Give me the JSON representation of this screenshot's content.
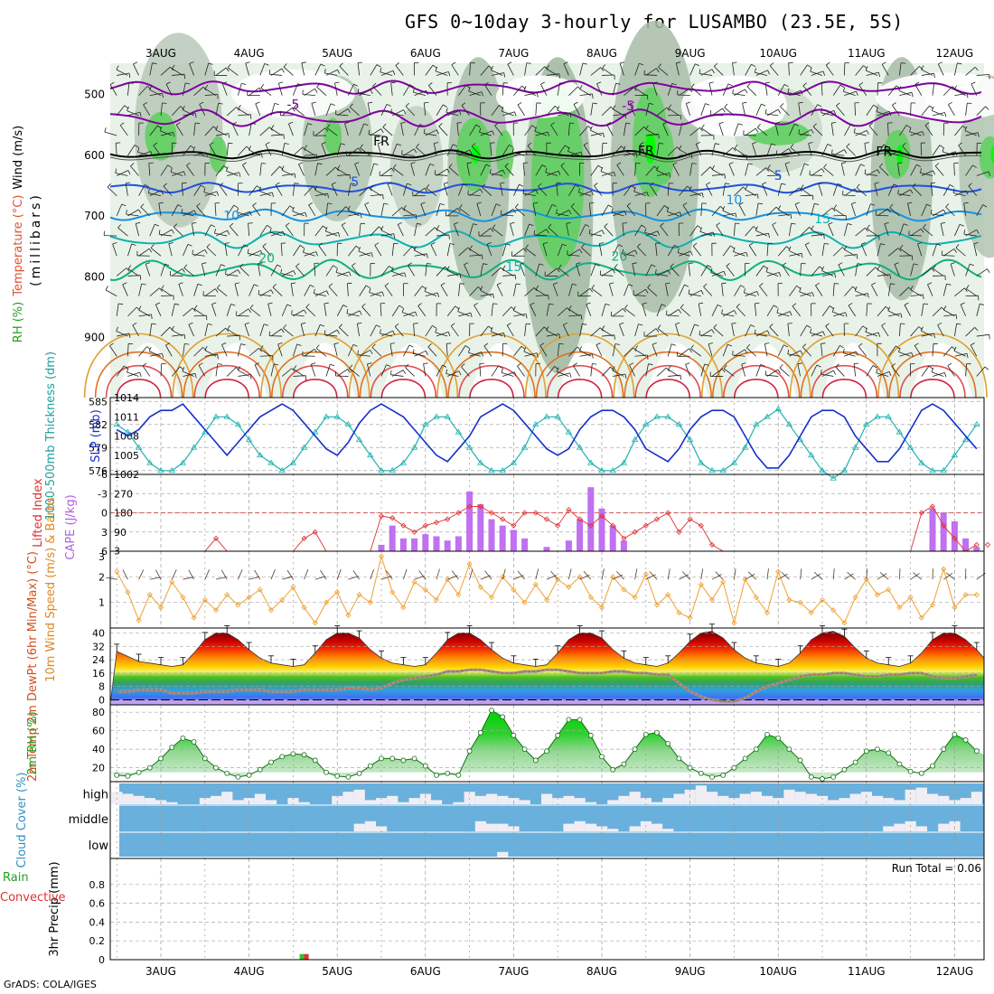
{
  "title": "GFS 0~10day 3-hourly for LUSAMBO (23.5E, 5S)",
  "credit": "GrADS: COLA/IGES",
  "dates": [
    "3AUG",
    "4AUG",
    "5AUG",
    "6AUG",
    "7AUG",
    "8AUG",
    "9AUG",
    "10AUG",
    "11AUG",
    "12AUG"
  ],
  "colors": {
    "rh_green": "#22c022",
    "temp_blue": "#2255dd",
    "thickness": "#20b0b0",
    "slp": "#1530cc",
    "cape": "#c070f0",
    "li": "#e03030",
    "wind": "#f0a030",
    "rh2m": "#22b022",
    "cloud": "#6ab0dc",
    "precip_rain": "#30c030",
    "precip_conv": "#e03030"
  },
  "chart_data": [
    {
      "type": "heatmap",
      "name": "upper_air",
      "ylabel_rh": "RH (%)",
      "ylabel_temp": "Temperature (°C)",
      "ylabel_wind": "Wind (m/s)",
      "ylabel_units": "(millibars)",
      "yticks": [
        500,
        600,
        700,
        800,
        900
      ],
      "ylim": [
        1000,
        450
      ],
      "contour_labels": [
        {
          "text": "-5",
          "x_day": 1.5,
          "p": 525,
          "color": "#8000a0"
        },
        {
          "text": "-5",
          "x_day": 5.3,
          "p": 527,
          "color": "#8000a0"
        },
        {
          "text": "FR",
          "x_day": 2.5,
          "p": 585,
          "color": "#000"
        },
        {
          "text": "FR",
          "x_day": 5.5,
          "p": 601,
          "color": "#000"
        },
        {
          "text": "FR",
          "x_day": 8.2,
          "p": 602,
          "color": "#000"
        },
        {
          "text": "5",
          "x_day": 2.2,
          "p": 652,
          "color": "#2050e0"
        },
        {
          "text": "5",
          "x_day": 7.0,
          "p": 642,
          "color": "#2050e0"
        },
        {
          "text": "10",
          "x_day": 0.8,
          "p": 708,
          "color": "#1890e0"
        },
        {
          "text": "10",
          "x_day": 6.5,
          "p": 682,
          "color": "#1890e0"
        },
        {
          "text": "15",
          "x_day": 4.0,
          "p": 792,
          "color": "#10b0b0"
        },
        {
          "text": "15",
          "x_day": 7.5,
          "p": 713,
          "color": "#10b0b0"
        },
        {
          "text": "20",
          "x_day": 1.2,
          "p": 778,
          "color": "#10b080"
        },
        {
          "text": "20",
          "x_day": 5.2,
          "p": 775,
          "color": "#10b080"
        }
      ]
    },
    {
      "type": "line",
      "name": "thickness_slp",
      "ylabel_left": "1000-500mb Thickness (dm)",
      "ylabel_right": "SLP (mb)",
      "yticks_left": [
        576,
        579,
        582,
        585
      ],
      "yticks_right": [
        1002,
        1005,
        1008,
        1011,
        1014
      ],
      "ylim_left": [
        575.5,
        585.5
      ],
      "ylim_right": [
        1002,
        1014
      ],
      "x_step_hours": 3,
      "series": [
        {
          "key": "thickness",
          "values": [
            582,
            581,
            579,
            577,
            576,
            576,
            577,
            579,
            581,
            583,
            583,
            582,
            580,
            578,
            577,
            576,
            577,
            579,
            581,
            583,
            583,
            582,
            580,
            578,
            576,
            576,
            577,
            579,
            582,
            583,
            583,
            581,
            579,
            577,
            576,
            576,
            577,
            579,
            582,
            583,
            583,
            581,
            579,
            577,
            576,
            576,
            577,
            580,
            582,
            583,
            583,
            582,
            580,
            577,
            576,
            576,
            577,
            579,
            582,
            583,
            584,
            582,
            580,
            578,
            576,
            575,
            576,
            579,
            582,
            583,
            583,
            581,
            579,
            577,
            576,
            576,
            578,
            580,
            582,
            583,
            583,
            582,
            580,
            578,
            577,
            576,
            577
          ]
        },
        {
          "key": "slp",
          "values": [
            1009,
            1008,
            1009,
            1011,
            1012,
            1012,
            1013,
            1011,
            1009,
            1007,
            1005,
            1007,
            1009,
            1011,
            1012,
            1013,
            1012,
            1010,
            1008,
            1006,
            1005,
            1007,
            1010,
            1012,
            1013,
            1012,
            1011,
            1009,
            1007,
            1005,
            1004,
            1006,
            1008,
            1011,
            1012,
            1013,
            1012,
            1010,
            1008,
            1006,
            1005,
            1006,
            1009,
            1011,
            1012,
            1012,
            1011,
            1009,
            1006,
            1005,
            1004,
            1006,
            1009,
            1011,
            1012,
            1012,
            1011,
            1008,
            1005,
            1003,
            1003,
            1005,
            1008,
            1011,
            1012,
            1012,
            1011,
            1008,
            1006,
            1004,
            1004,
            1006,
            1009,
            1012,
            1013,
            1012,
            1010,
            1008,
            1006,
            1005,
            1004,
            1006,
            1008,
            1010,
            1011,
            1011,
            1012
          ]
        }
      ]
    },
    {
      "type": "bar",
      "name": "cape_li",
      "ylabel_left": "Lifted Index",
      "ylabel_right": "CAPE (J/kg)",
      "yticks_left": [
        "-6",
        "-3",
        "0",
        "3",
        "6"
      ],
      "yticks_right": [
        3,
        90,
        180,
        270
      ],
      "ylim_right": [
        0,
        360
      ],
      "ylim_li": [
        6,
        -6
      ],
      "cape": [
        0,
        0,
        0,
        0,
        0,
        0,
        0,
        0,
        0,
        0,
        0,
        0,
        0,
        0,
        0,
        0,
        0,
        0,
        0,
        0,
        0,
        0,
        0,
        0,
        30,
        120,
        60,
        60,
        80,
        70,
        50,
        70,
        280,
        220,
        150,
        120,
        100,
        60,
        0,
        20,
        0,
        50,
        150,
        300,
        200,
        120,
        50,
        0,
        0,
        0,
        0,
        0,
        0,
        0,
        0,
        0,
        0,
        0,
        0,
        0,
        0,
        0,
        0,
        0,
        0,
        0,
        0,
        0,
        0,
        0,
        0,
        0,
        0,
        0,
        200,
        180,
        140,
        60,
        20,
        0,
        0,
        0,
        0,
        240,
        180,
        50,
        20,
        0,
        10
      ],
      "li": [
        7,
        7,
        7,
        7,
        7,
        7,
        7,
        7,
        7,
        4,
        6,
        7,
        7,
        7,
        7,
        7,
        7,
        4,
        3,
        6,
        7,
        7,
        7,
        7,
        0.5,
        0.8,
        2,
        3,
        2,
        1.5,
        1,
        0,
        -1,
        -1,
        0,
        1,
        2,
        0,
        0,
        1,
        2,
        -0.5,
        1,
        2,
        0.5,
        2,
        4,
        3,
        2,
        1,
        0,
        3,
        1,
        2,
        5,
        7,
        7,
        7,
        7,
        7,
        7,
        7,
        7,
        7,
        7,
        7,
        7,
        7,
        7,
        7,
        7,
        7,
        7,
        0,
        -1,
        2,
        4,
        6,
        5,
        5,
        6,
        2,
        0,
        -2,
        1,
        3,
        5,
        6,
        6,
        4,
        2,
        0
      ]
    },
    {
      "type": "line",
      "name": "wind10m",
      "ylabel": "10m Wind Speed (m/s) & Barbs",
      "yticks": [
        1,
        2
      ],
      "ylim": [
        0,
        3
      ],
      "values": [
        2.2,
        1.4,
        0.3,
        1.3,
        0.8,
        1.8,
        1.2,
        0.4,
        1.1,
        0.7,
        1.3,
        0.9,
        1.2,
        1.5,
        0.7,
        1.1,
        1.6,
        0.8,
        0.2,
        1.0,
        1.4,
        0.5,
        1.3,
        1.0,
        2.8,
        1.4,
        0.8,
        1.8,
        1.5,
        1.1,
        1.9,
        1.3,
        2.5,
        1.6,
        1.2,
        2.0,
        1.5,
        1.0,
        1.7,
        1.1,
        1.9,
        1.6,
        2.0,
        1.2,
        0.8,
        2.0,
        1.5,
        1.2,
        2.1,
        0.9,
        1.3,
        0.6,
        0.4,
        1.7,
        1.1,
        1.8,
        0.2,
        1.9,
        1.2,
        0.6,
        2.2,
        1.1,
        1.0,
        0.6,
        1.1,
        0.7,
        0.2,
        1.2,
        1.9,
        1.3,
        1.5,
        0.8,
        1.2,
        0.4,
        0.9,
        2.3,
        0.8,
        1.3,
        1.3,
        2.2,
        1.1,
        0.7,
        0.4,
        1.0,
        0.8,
        1.1,
        1.2
      ]
    },
    {
      "type": "area",
      "name": "temp2m",
      "ylabel": "2m Temp 2m DewPt (6hr Min/Max) (°C)",
      "yticks": [
        0,
        8,
        16,
        24,
        32,
        40
      ],
      "ylim": [
        -3,
        43
      ],
      "temp": [
        29,
        26,
        23,
        22,
        21,
        20,
        21,
        28,
        36,
        40,
        40,
        36,
        30,
        25,
        22,
        21,
        20,
        21,
        28,
        36,
        40,
        40,
        37,
        30,
        25,
        22,
        21,
        20,
        21,
        28,
        36,
        40,
        40,
        36,
        30,
        25,
        22,
        21,
        20,
        21,
        28,
        36,
        40,
        40,
        37,
        30,
        25,
        22,
        21,
        20,
        22,
        28,
        35,
        40,
        41,
        37,
        30,
        25,
        22,
        21,
        20,
        22,
        28,
        36,
        40,
        41,
        38,
        31,
        25,
        22,
        21,
        20,
        22,
        28,
        36,
        40,
        40,
        36,
        30,
        25,
        22,
        21,
        20,
        22,
        28,
        35,
        40,
        39,
        36
      ],
      "dewpt": [
        5,
        5,
        6,
        6,
        6,
        4,
        4,
        4,
        5,
        5,
        5,
        6,
        6,
        6,
        5,
        5,
        5,
        6,
        6,
        6,
        6,
        7,
        7,
        6,
        7,
        10,
        12,
        13,
        14,
        15,
        17,
        17,
        18,
        18,
        17,
        16,
        16,
        17,
        17,
        18,
        18,
        17,
        16,
        16,
        16,
        17,
        17,
        16,
        16,
        15,
        15,
        10,
        5,
        2,
        0,
        -1,
        -1,
        1,
        5,
        8,
        10,
        12,
        14,
        15,
        15,
        16,
        16,
        15,
        14,
        14,
        15,
        15,
        16,
        16,
        14,
        13,
        13,
        14,
        15,
        14,
        14,
        14,
        13,
        13,
        14,
        15,
        17
      ]
    },
    {
      "type": "area",
      "name": "rh2m",
      "ylabel": "2m RH (%)",
      "yticks": [
        20,
        40,
        60,
        80
      ],
      "ylim": [
        5,
        88
      ],
      "values": [
        12,
        11,
        15,
        20,
        30,
        42,
        52,
        48,
        30,
        20,
        14,
        10,
        12,
        18,
        26,
        32,
        35,
        34,
        28,
        15,
        11,
        10,
        14,
        22,
        30,
        30,
        28,
        30,
        22,
        12,
        14,
        12,
        38,
        58,
        82,
        75,
        55,
        40,
        28,
        38,
        55,
        72,
        72,
        55,
        32,
        18,
        24,
        40,
        56,
        58,
        46,
        30,
        20,
        14,
        10,
        12,
        20,
        30,
        40,
        56,
        52,
        40,
        28,
        10,
        8,
        10,
        18,
        26,
        38,
        40,
        36,
        24,
        16,
        14,
        22,
        40,
        56,
        50,
        38,
        34,
        42,
        55,
        52,
        38,
        20,
        14,
        20,
        42,
        65
      ]
    },
    {
      "type": "bar",
      "name": "cloud_cover",
      "ylabel": "Cloud Cover (%)",
      "levels": [
        "high",
        "middle",
        "low"
      ],
      "high": [
        60,
        50,
        40,
        30,
        20,
        10,
        0,
        0,
        30,
        40,
        60,
        20,
        30,
        50,
        20,
        0,
        30,
        10,
        0,
        0,
        40,
        60,
        70,
        20,
        30,
        40,
        10,
        30,
        50,
        20,
        0,
        10,
        60,
        40,
        50,
        40,
        30,
        20,
        0,
        50,
        30,
        40,
        30,
        10,
        0,
        20,
        40,
        60,
        30,
        10,
        30,
        50,
        70,
        90,
        60,
        40,
        30,
        50,
        60,
        40,
        30,
        70,
        60,
        50,
        40,
        20,
        30,
        50,
        60,
        40,
        30,
        20,
        70,
        80,
        50,
        40,
        20,
        30,
        60,
        40,
        30,
        50,
        70,
        40,
        20,
        30,
        60
      ],
      "middle": [
        0,
        0,
        0,
        0,
        0,
        0,
        0,
        0,
        0,
        0,
        0,
        0,
        0,
        0,
        0,
        0,
        0,
        0,
        0,
        0,
        0,
        0,
        30,
        40,
        20,
        0,
        0,
        0,
        0,
        0,
        0,
        0,
        0,
        40,
        30,
        30,
        20,
        0,
        0,
        0,
        0,
        30,
        40,
        30,
        20,
        10,
        0,
        20,
        40,
        30,
        10,
        0,
        0,
        0,
        0,
        0,
        0,
        0,
        0,
        0,
        0,
        0,
        0,
        0,
        0,
        0,
        0,
        0,
        0,
        0,
        20,
        30,
        40,
        20,
        0,
        30,
        40,
        0,
        0,
        0,
        0,
        0,
        0,
        0,
        0,
        0,
        0
      ],
      "low": [
        0,
        0,
        0,
        0,
        0,
        0,
        0,
        0,
        0,
        0,
        0,
        0,
        0,
        0,
        0,
        0,
        0,
        0,
        0,
        0,
        0,
        0,
        0,
        0,
        0,
        0,
        0,
        0,
        0,
        0,
        0,
        0,
        0,
        0,
        0,
        20,
        0,
        0,
        0,
        0,
        0,
        0,
        0,
        0,
        0,
        0,
        0,
        0,
        0,
        0,
        0,
        0,
        0,
        0,
        0,
        0,
        0,
        0,
        0,
        0,
        0,
        0,
        0,
        0,
        0,
        0,
        0,
        0,
        0,
        0,
        0,
        0,
        0,
        0,
        0,
        0,
        0,
        0,
        0,
        0,
        0,
        0,
        0,
        0,
        0,
        0,
        0
      ]
    },
    {
      "type": "bar",
      "name": "precip",
      "ylabel_left": "Total / Rain Convective",
      "ylabel": "3hr Precip (mm)",
      "yticks": [
        0,
        0.2,
        0.4,
        0.6,
        0.8
      ],
      "ylim": [
        0,
        1
      ],
      "run_total_label": "Run Total = 0.06",
      "bars": [
        {
          "hour": 48,
          "total": 0.06,
          "convective": 0.06
        }
      ]
    }
  ]
}
